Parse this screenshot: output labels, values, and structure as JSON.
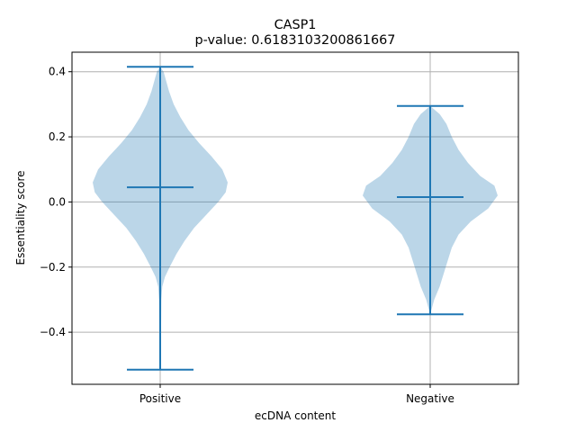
{
  "chart_data": {
    "type": "violin",
    "title": "CASP1",
    "subtitle": "p-value: 0.6183103200861667",
    "xlabel": "ecDNA content",
    "ylabel": "Essentiality score",
    "categories": [
      "Positive",
      "Negative"
    ],
    "ylim": [
      -0.56,
      0.46
    ],
    "yticks": [
      -0.4,
      -0.2,
      0.0,
      0.2,
      0.4
    ],
    "ytick_labels": [
      "−0.4",
      "−0.2",
      "0.0",
      "0.2",
      "0.4"
    ],
    "grid": true,
    "series": [
      {
        "category": "Positive",
        "min": -0.515,
        "max": 0.415,
        "median": 0.045,
        "density": [
          {
            "y": -0.515,
            "w": 0.0
          },
          {
            "y": -0.5,
            "w": 0.006
          },
          {
            "y": -0.45,
            "w": 0.01
          },
          {
            "y": -0.4,
            "w": 0.012
          },
          {
            "y": -0.35,
            "w": 0.015
          },
          {
            "y": -0.3,
            "w": 0.018
          },
          {
            "y": -0.26,
            "w": 0.03
          },
          {
            "y": -0.23,
            "w": 0.07
          },
          {
            "y": -0.2,
            "w": 0.14
          },
          {
            "y": -0.16,
            "w": 0.24
          },
          {
            "y": -0.12,
            "w": 0.36
          },
          {
            "y": -0.08,
            "w": 0.5
          },
          {
            "y": -0.04,
            "w": 0.68
          },
          {
            "y": 0.0,
            "w": 0.86
          },
          {
            "y": 0.03,
            "w": 0.97
          },
          {
            "y": 0.06,
            "w": 1.0
          },
          {
            "y": 0.1,
            "w": 0.92
          },
          {
            "y": 0.14,
            "w": 0.76
          },
          {
            "y": 0.18,
            "w": 0.58
          },
          {
            "y": 0.22,
            "w": 0.42
          },
          {
            "y": 0.26,
            "w": 0.3
          },
          {
            "y": 0.3,
            "w": 0.2
          },
          {
            "y": 0.34,
            "w": 0.13
          },
          {
            "y": 0.37,
            "w": 0.09
          },
          {
            "y": 0.4,
            "w": 0.05
          },
          {
            "y": 0.415,
            "w": 0.0
          }
        ]
      },
      {
        "category": "Negative",
        "min": -0.345,
        "max": 0.295,
        "median": 0.015,
        "density": [
          {
            "y": -0.345,
            "w": 0.0
          },
          {
            "y": -0.33,
            "w": 0.02
          },
          {
            "y": -0.3,
            "w": 0.06
          },
          {
            "y": -0.26,
            "w": 0.14
          },
          {
            "y": -0.22,
            "w": 0.2
          },
          {
            "y": -0.18,
            "w": 0.26
          },
          {
            "y": -0.14,
            "w": 0.32
          },
          {
            "y": -0.1,
            "w": 0.42
          },
          {
            "y": -0.06,
            "w": 0.6
          },
          {
            "y": -0.02,
            "w": 0.86
          },
          {
            "y": 0.02,
            "w": 1.0
          },
          {
            "y": 0.05,
            "w": 0.95
          },
          {
            "y": 0.08,
            "w": 0.74
          },
          {
            "y": 0.12,
            "w": 0.56
          },
          {
            "y": 0.16,
            "w": 0.42
          },
          {
            "y": 0.2,
            "w": 0.32
          },
          {
            "y": 0.24,
            "w": 0.24
          },
          {
            "y": 0.27,
            "w": 0.14
          },
          {
            "y": 0.295,
            "w": 0.0
          }
        ]
      }
    ],
    "colors": {
      "body_fill": "#1f77b4",
      "body_opacity": 0.3,
      "lines": "#1f77b4",
      "grid": "#b0b0b0",
      "axes": "#000000"
    }
  }
}
